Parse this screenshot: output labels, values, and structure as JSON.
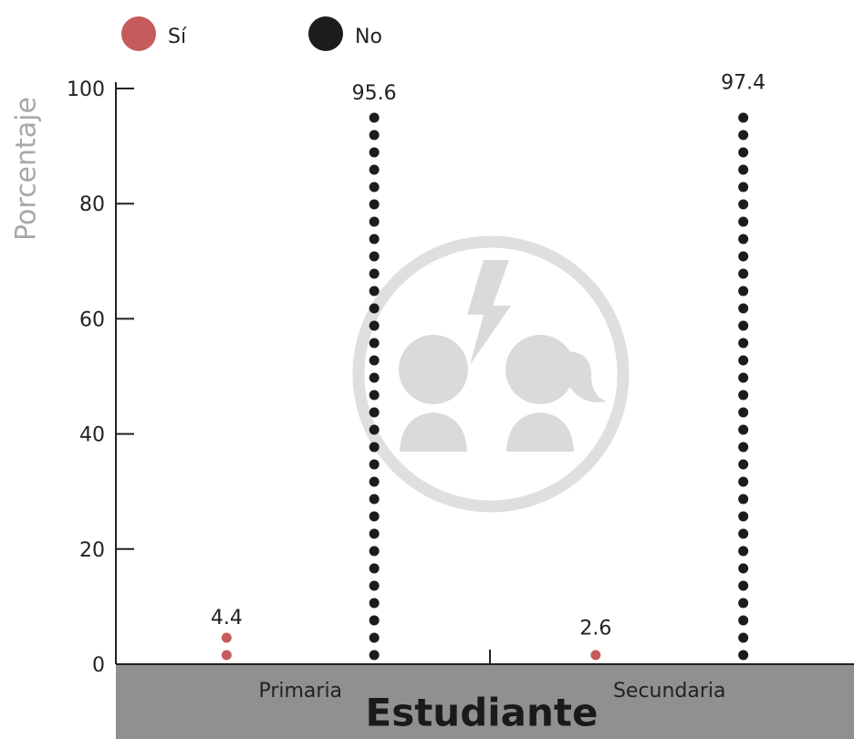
{
  "chart_data": {
    "type": "dotcolumn",
    "y_label": "Porcentaje",
    "x_label": "Estudiante",
    "categories": [
      "Primaria",
      "Secundaria"
    ],
    "series": [
      {
        "name": "Sí",
        "color": "#c65b5b",
        "values": [
          4.4,
          2.6
        ]
      },
      {
        "name": "No",
        "color": "#1c1c1c",
        "values": [
          95.6,
          97.4
        ]
      }
    ],
    "ylim": [
      0,
      100
    ],
    "yticks": [
      0,
      20,
      40,
      60,
      80,
      100
    ],
    "grid": false
  }
}
